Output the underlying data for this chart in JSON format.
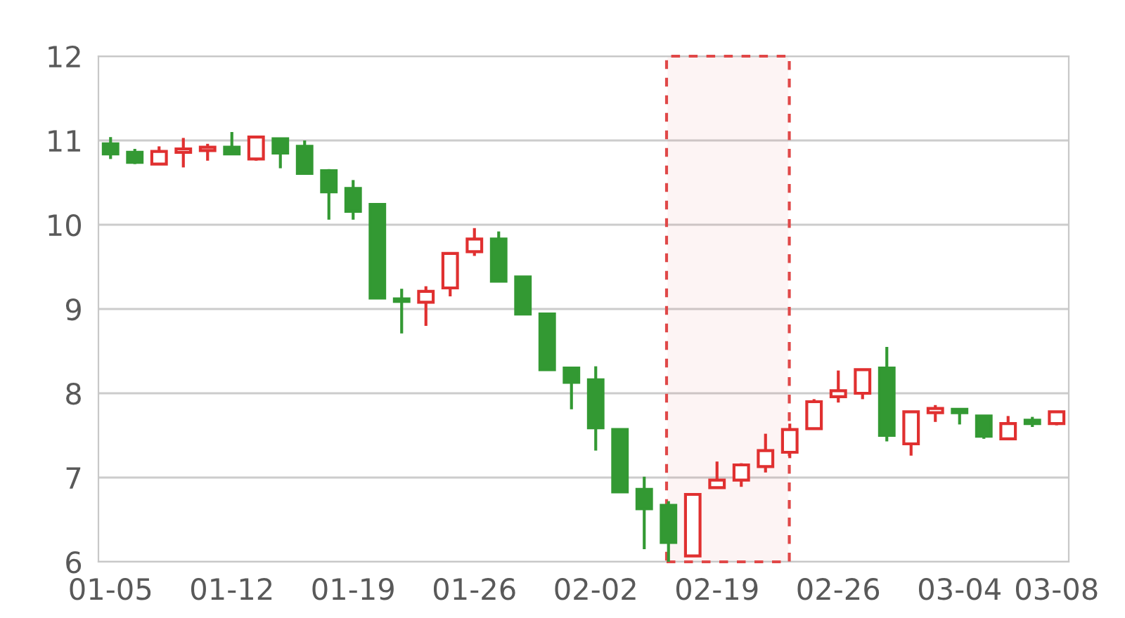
{
  "chart_data": {
    "type": "candlestick",
    "categories": [
      "01-05",
      null,
      null,
      null,
      null,
      "01-12",
      null,
      null,
      null,
      null,
      "01-19",
      null,
      null,
      null,
      null,
      "01-26",
      null,
      null,
      null,
      null,
      "02-02",
      null,
      null,
      null,
      null,
      "02-19",
      null,
      null,
      null,
      null,
      "02-26",
      null,
      null,
      null,
      null,
      "03-04",
      null,
      null,
      null,
      "03-08"
    ],
    "ohlc": [
      [
        10.96,
        11.04,
        10.78,
        10.84
      ],
      [
        10.86,
        10.9,
        10.72,
        10.74
      ],
      [
        10.72,
        10.93,
        10.72,
        10.87
      ],
      [
        10.86,
        11.03,
        10.68,
        10.9
      ],
      [
        10.88,
        10.96,
        10.76,
        10.92
      ],
      [
        10.92,
        11.1,
        10.84,
        10.84
      ],
      [
        10.78,
        11.05,
        10.76,
        11.04
      ],
      [
        11.02,
        11.02,
        10.67,
        10.85
      ],
      [
        10.93,
        11.0,
        10.6,
        10.61
      ],
      [
        10.64,
        10.66,
        10.06,
        10.39
      ],
      [
        10.43,
        10.53,
        10.06,
        10.16
      ],
      [
        10.24,
        10.24,
        9.13,
        9.13
      ],
      [
        9.12,
        9.24,
        8.71,
        9.09
      ],
      [
        9.08,
        9.27,
        8.8,
        9.21
      ],
      [
        9.25,
        9.66,
        9.15,
        9.66
      ],
      [
        9.68,
        9.96,
        9.63,
        9.83
      ],
      [
        9.83,
        9.92,
        9.33,
        9.33
      ],
      [
        9.38,
        9.38,
        8.93,
        8.94
      ],
      [
        8.94,
        8.95,
        8.28,
        8.28
      ],
      [
        8.3,
        8.3,
        7.81,
        8.13
      ],
      [
        8.16,
        8.32,
        7.32,
        7.59
      ],
      [
        7.57,
        7.57,
        6.83,
        6.83
      ],
      [
        6.86,
        7.01,
        6.15,
        6.63
      ],
      [
        6.67,
        6.72,
        6.0,
        6.23
      ],
      [
        6.07,
        6.8,
        6.07,
        6.8
      ],
      [
        6.88,
        7.19,
        6.88,
        6.97
      ],
      [
        6.97,
        7.17,
        6.89,
        7.15
      ],
      [
        7.13,
        7.52,
        7.06,
        7.32
      ],
      [
        7.3,
        7.64,
        7.23,
        7.57
      ],
      [
        7.58,
        7.93,
        7.57,
        7.9
      ],
      [
        7.96,
        8.27,
        7.89,
        8.03
      ],
      [
        8.0,
        8.28,
        7.93,
        8.28
      ],
      [
        8.3,
        8.55,
        7.43,
        7.5
      ],
      [
        7.4,
        7.78,
        7.26,
        7.78
      ],
      [
        7.77,
        7.86,
        7.66,
        7.82
      ],
      [
        7.81,
        7.82,
        7.63,
        7.77
      ],
      [
        7.73,
        7.73,
        7.46,
        7.49
      ],
      [
        7.46,
        7.73,
        7.46,
        7.64
      ],
      [
        7.68,
        7.72,
        7.6,
        7.64
      ],
      [
        7.64,
        7.78,
        7.62,
        7.78
      ]
    ],
    "colors": [
      "#339933",
      "#339933",
      "#e03030",
      "#e03030",
      "#e03030",
      "#339933",
      "#e03030",
      "#339933",
      "#339933",
      "#339933",
      "#339933",
      "#339933",
      "#339933",
      "#e03030",
      "#e03030",
      "#e03030",
      "#339933",
      "#339933",
      "#339933",
      "#339933",
      "#339933",
      "#339933",
      "#339933",
      "#339933",
      "#e03030",
      "#e03030",
      "#e03030",
      "#e03030",
      "#e03030",
      "#e03030",
      "#e03030",
      "#e03030",
      "#339933",
      "#e03030",
      "#e03030",
      "#339933",
      "#339933",
      "#e03030",
      "#339933",
      "#e03030"
    ],
    "ylim": [
      6,
      12
    ],
    "yticks": [
      6,
      7,
      8,
      9,
      10,
      11,
      12
    ],
    "grid": "y"
  }
}
